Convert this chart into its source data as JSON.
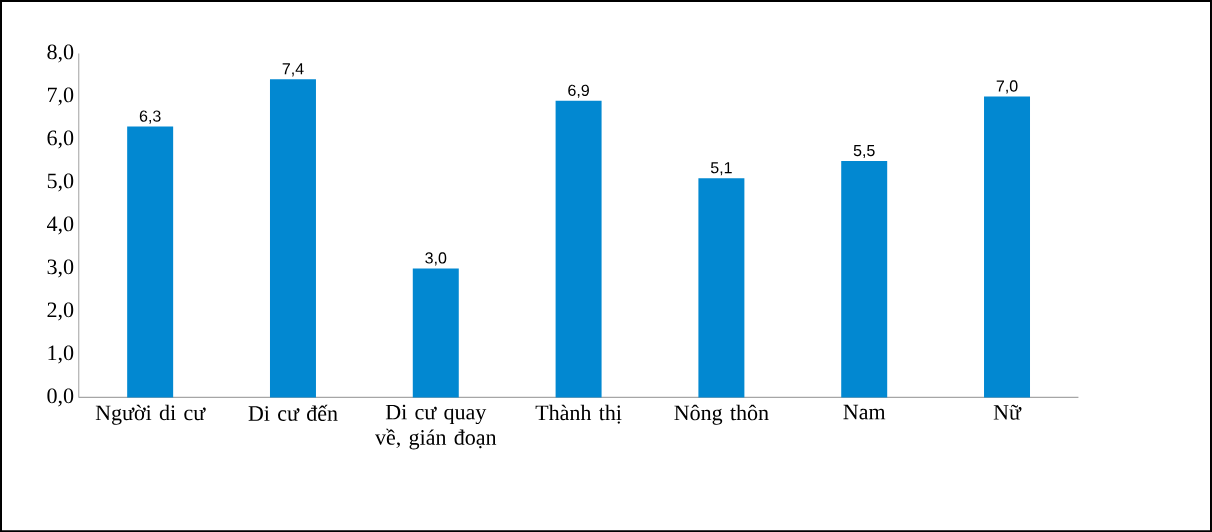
{
  "chart_data": {
    "type": "bar",
    "categories": [
      "Người di cư",
      "Di cư đến",
      "Di cư quay về, gián đoạn",
      "Thành thị",
      "Nông thôn",
      "Nam",
      "Nữ"
    ],
    "values": [
      6.3,
      7.4,
      3.0,
      6.9,
      5.1,
      5.5,
      7.0
    ],
    "value_labels": [
      "6,3",
      "7,4",
      "3,0",
      "6,9",
      "5,1",
      "5,5",
      "7,0"
    ],
    "color": "#0288d1",
    "ylim": [
      0,
      8
    ],
    "yticks": [
      {
        "value": 0,
        "label": "0,0"
      },
      {
        "value": 1,
        "label": "1,0"
      },
      {
        "value": 2,
        "label": "2,0"
      },
      {
        "value": 3,
        "label": "3,0"
      },
      {
        "value": 4,
        "label": "4,0"
      },
      {
        "value": 5,
        "label": "5,0"
      },
      {
        "value": 6,
        "label": "6,0"
      },
      {
        "value": 7,
        "label": "7,0"
      },
      {
        "value": 8,
        "label": "8,0"
      }
    ],
    "grid": false
  }
}
